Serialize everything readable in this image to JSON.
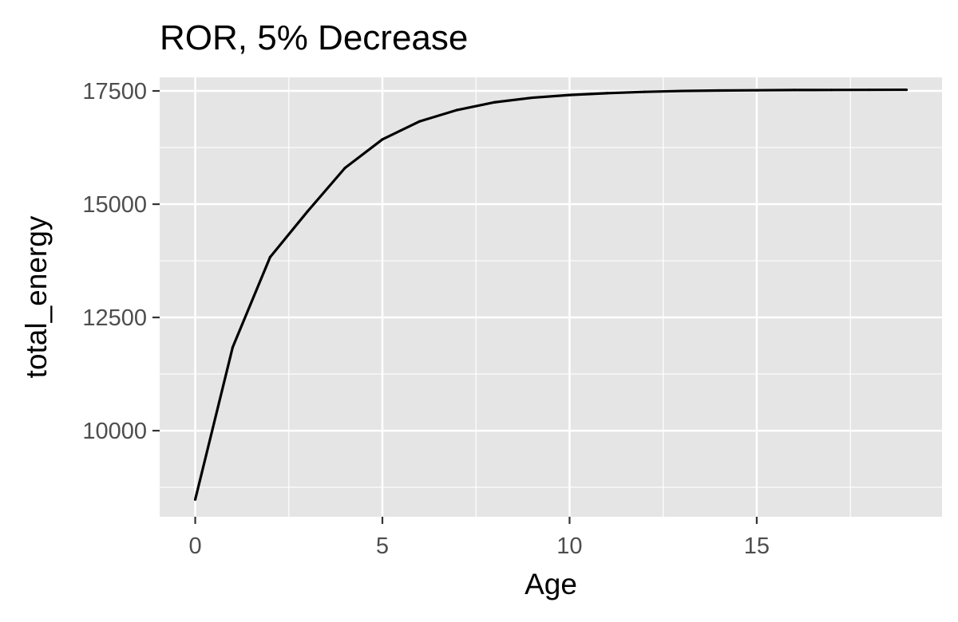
{
  "chart_data": {
    "type": "line",
    "title": "ROR, 5% Decrease",
    "xlabel": "Age",
    "ylabel": "total_energy",
    "xlim": [
      -0.95,
      19.95
    ],
    "ylim": [
      8100,
      17800
    ],
    "x_ticks": [
      0,
      5,
      10,
      15
    ],
    "x_minor_ticks": [
      2.5,
      7.5,
      12.5,
      17.5
    ],
    "y_ticks": [
      10000,
      12500,
      15000,
      17500
    ],
    "y_minor_ticks": [
      8750,
      11250,
      13750,
      16250
    ],
    "grid": true,
    "legend": "none",
    "colors": {
      "panel": "#e5e5e5",
      "grid": "#ffffff",
      "line": "#000000",
      "tick_text": "#4d4d4d"
    },
    "series": [
      {
        "x": [
          0,
          1,
          2,
          3,
          4,
          5,
          6,
          7,
          8,
          9,
          10,
          11,
          12,
          13,
          14,
          15,
          16,
          17,
          18,
          19
        ],
        "values": [
          8480,
          11840,
          13830,
          14840,
          15800,
          16430,
          16830,
          17080,
          17250,
          17350,
          17410,
          17450,
          17480,
          17500,
          17510,
          17515,
          17520,
          17522,
          17524,
          17526
        ]
      }
    ]
  }
}
